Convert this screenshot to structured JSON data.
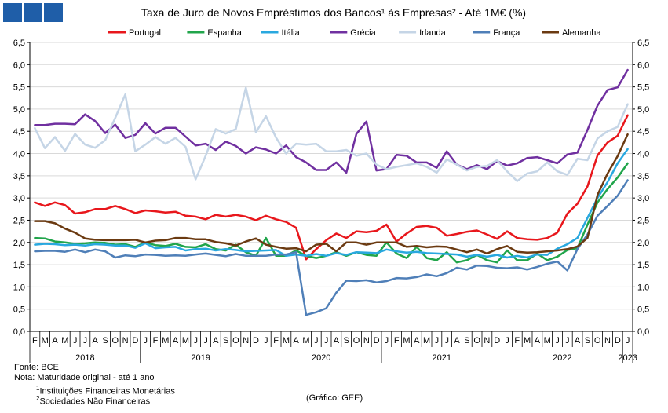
{
  "logo": {
    "color": "#1f5ea8"
  },
  "chart_data": {
    "type": "line",
    "title": "Taxa de Juro de Novos Empréstimos dos Bancos¹ às Empresas² - Até 1M€ (%)",
    "xlabel": "",
    "ylabel": "",
    "ylim": [
      0,
      6.5
    ],
    "yticks": [
      "0,0",
      "0,5",
      "1,0",
      "1,5",
      "2,0",
      "2,5",
      "3,0",
      "3,5",
      "4,0",
      "4,5",
      "5,0",
      "5,5",
      "6,0",
      "6,5"
    ],
    "grid": true,
    "legend_position": "top",
    "month_labels": [
      "F",
      "M",
      "A",
      "M",
      "J",
      "J",
      "A",
      "S",
      "O",
      "N",
      "D",
      "J",
      "F",
      "M",
      "A",
      "M",
      "J",
      "J",
      "A",
      "S",
      "O",
      "N",
      "D",
      "J",
      "F",
      "M",
      "A",
      "M",
      "J",
      "J",
      "A",
      "S",
      "O",
      "N",
      "D",
      "J",
      "F",
      "M",
      "A",
      "M",
      "J",
      "J",
      "A",
      "S",
      "O",
      "N",
      "D",
      "J",
      "F",
      "M",
      "A",
      "M",
      "J",
      "J",
      "A",
      "S",
      "O",
      "N",
      "D",
      "J"
    ],
    "year_labels": [
      {
        "label": "2018",
        "start": 0,
        "end": 10
      },
      {
        "label": "2019",
        "start": 11,
        "end": 22
      },
      {
        "label": "2020",
        "start": 23,
        "end": 34
      },
      {
        "label": "2021",
        "start": 35,
        "end": 46
      },
      {
        "label": "2022",
        "start": 47,
        "end": 58
      },
      {
        "label": "2023",
        "start": 59,
        "end": 59
      }
    ],
    "series": [
      {
        "name": "Portugal",
        "color": "#e8171c",
        "values": [
          2.9,
          2.82,
          2.9,
          2.84,
          2.65,
          2.68,
          2.75,
          2.75,
          2.82,
          2.75,
          2.66,
          2.72,
          2.7,
          2.67,
          2.69,
          2.6,
          2.58,
          2.52,
          2.62,
          2.58,
          2.62,
          2.58,
          2.5,
          2.6,
          2.52,
          2.46,
          2.33,
          1.62,
          1.85,
          2.05,
          2.2,
          2.1,
          2.25,
          2.23,
          2.26,
          2.4,
          2.02,
          2.2,
          2.35,
          2.37,
          2.33,
          2.15,
          2.19,
          2.24,
          2.27,
          2.18,
          2.08,
          2.25,
          2.1,
          2.07,
          2.06,
          2.1,
          2.22,
          2.65,
          2.87,
          3.26,
          3.96,
          4.25,
          4.4,
          4.86
        ]
      },
      {
        "name": "Espanha",
        "color": "#21a54b",
        "values": [
          2.1,
          2.09,
          2.02,
          2.0,
          1.97,
          1.98,
          2.0,
          1.99,
          1.95,
          1.96,
          1.9,
          2.0,
          1.94,
          1.92,
          1.97,
          1.9,
          1.89,
          1.96,
          1.85,
          1.82,
          1.95,
          1.78,
          1.7,
          2.1,
          1.7,
          1.7,
          1.82,
          1.7,
          1.65,
          1.7,
          1.78,
          1.7,
          1.78,
          1.72,
          1.7,
          2.0,
          1.75,
          1.65,
          1.9,
          1.65,
          1.6,
          1.78,
          1.55,
          1.6,
          1.72,
          1.6,
          1.55,
          1.82,
          1.6,
          1.6,
          1.75,
          1.6,
          1.68,
          1.83,
          1.87,
          2.4,
          2.9,
          3.2,
          3.46,
          3.78
        ]
      },
      {
        "name": "Itália",
        "color": "#29a8df",
        "values": [
          1.95,
          1.97,
          1.96,
          1.94,
          1.95,
          1.93,
          1.96,
          1.95,
          1.93,
          1.93,
          1.88,
          1.98,
          1.87,
          1.89,
          1.9,
          1.82,
          1.85,
          1.86,
          1.82,
          1.85,
          1.83,
          1.8,
          1.81,
          1.82,
          1.83,
          1.7,
          1.73,
          1.7,
          1.74,
          1.7,
          1.76,
          1.72,
          1.78,
          1.77,
          1.76,
          1.84,
          1.8,
          1.77,
          1.79,
          1.76,
          1.75,
          1.74,
          1.73,
          1.68,
          1.72,
          1.68,
          1.72,
          1.66,
          1.7,
          1.66,
          1.73,
          1.72,
          1.86,
          1.96,
          2.1,
          2.55,
          3.0,
          3.36,
          3.78,
          4.1
        ]
      },
      {
        "name": "Grécia",
        "color": "#7030a0",
        "values": [
          4.64,
          4.64,
          4.67,
          4.67,
          4.66,
          4.88,
          4.73,
          4.46,
          4.65,
          4.35,
          4.42,
          4.68,
          4.45,
          4.58,
          4.58,
          4.38,
          4.18,
          4.22,
          4.08,
          4.27,
          4.17,
          4.0,
          4.14,
          4.09,
          4.0,
          4.18,
          3.92,
          3.8,
          3.63,
          3.63,
          3.8,
          3.57,
          4.44,
          4.72,
          3.62,
          3.65,
          3.97,
          3.95,
          3.8,
          3.8,
          3.68,
          4.05,
          3.75,
          3.65,
          3.74,
          3.65,
          3.83,
          3.73,
          3.78,
          3.9,
          3.92,
          3.85,
          3.78,
          3.98,
          4.02,
          4.53,
          5.08,
          5.43,
          5.49,
          5.88
        ]
      },
      {
        "name": "Irlanda",
        "color": "#c5d5e6",
        "values": [
          4.57,
          4.12,
          4.37,
          4.06,
          4.44,
          4.2,
          4.13,
          4.3,
          4.8,
          5.33,
          4.05,
          4.2,
          4.37,
          4.22,
          4.35,
          4.15,
          3.42,
          3.95,
          4.55,
          4.45,
          4.55,
          5.48,
          4.48,
          4.84,
          4.36,
          4.0,
          4.22,
          4.2,
          4.22,
          4.05,
          4.05,
          4.08,
          3.95,
          4.0,
          3.75,
          3.65,
          3.7,
          3.74,
          3.78,
          3.7,
          3.57,
          3.87,
          3.75,
          3.62,
          3.7,
          3.72,
          3.85,
          3.6,
          3.38,
          3.55,
          3.6,
          3.8,
          3.6,
          3.52,
          3.88,
          3.85,
          4.34,
          4.5,
          4.6,
          5.11
        ]
      },
      {
        "name": "França",
        "color": "#4f7fb8",
        "values": [
          1.8,
          1.81,
          1.81,
          1.79,
          1.84,
          1.78,
          1.84,
          1.8,
          1.66,
          1.71,
          1.69,
          1.73,
          1.72,
          1.7,
          1.71,
          1.7,
          1.73,
          1.75,
          1.72,
          1.69,
          1.74,
          1.7,
          1.7,
          1.7,
          1.73,
          1.73,
          1.78,
          0.37,
          0.43,
          0.52,
          0.87,
          1.14,
          1.13,
          1.15,
          1.1,
          1.13,
          1.2,
          1.19,
          1.22,
          1.28,
          1.24,
          1.31,
          1.43,
          1.39,
          1.48,
          1.47,
          1.43,
          1.42,
          1.44,
          1.39,
          1.45,
          1.52,
          1.57,
          1.37,
          1.85,
          2.18,
          2.6,
          2.82,
          3.05,
          3.4
        ]
      },
      {
        "name": "Alemanha",
        "color": "#6b3a11",
        "values": [
          2.48,
          2.48,
          2.43,
          2.31,
          2.22,
          2.09,
          2.06,
          2.05,
          2.05,
          2.05,
          2.06,
          2.0,
          2.04,
          2.05,
          2.1,
          2.1,
          2.07,
          2.07,
          2.01,
          1.98,
          1.93,
          2.02,
          2.09,
          1.95,
          1.9,
          1.86,
          1.87,
          1.8,
          1.95,
          1.97,
          1.8,
          2.0,
          2.0,
          1.95,
          2.0,
          2.0,
          2.0,
          1.9,
          1.92,
          1.89,
          1.91,
          1.9,
          1.84,
          1.78,
          1.84,
          1.75,
          1.85,
          1.92,
          1.79,
          1.77,
          1.78,
          1.8,
          1.82,
          1.85,
          1.91,
          2.1,
          3.07,
          3.55,
          3.94,
          4.43
        ]
      }
    ]
  },
  "footer": {
    "source": "Fonte: BCE",
    "note": "Nota: Maturidade original - até 1 ano",
    "note1_mark": "1",
    "note1": "Instituições Financeiras Monetárias",
    "note2_mark": "2",
    "note2": "Sociedades Não Financeiras",
    "credit": "(Gráfico: GEE)"
  }
}
